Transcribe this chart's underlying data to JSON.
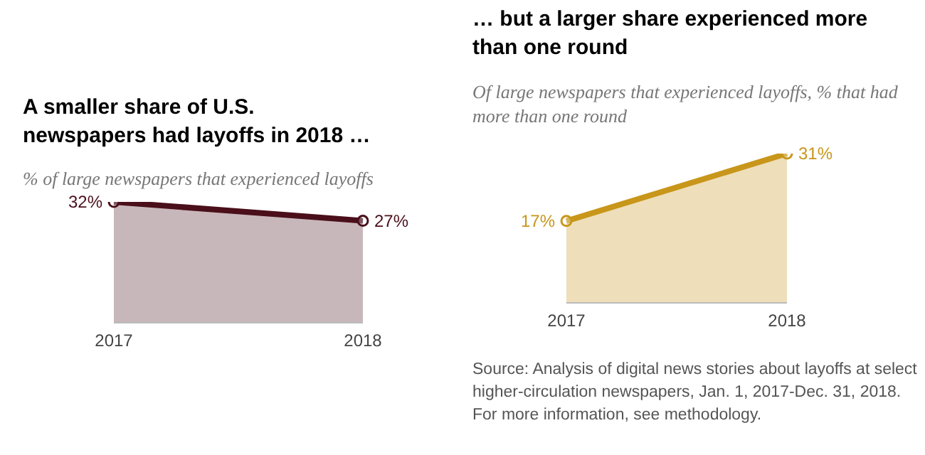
{
  "chart_data": [
    {
      "type": "area",
      "title": "A smaller share of U.S. newspapers had layoffs in 2018 …",
      "subtitle": "% of large newspapers that experienced layoffs",
      "categories": [
        "2017",
        "2018"
      ],
      "series": [
        {
          "color": "#4a0f1a",
          "values": [
            32,
            27
          ],
          "value_labels": [
            "32%",
            "27%"
          ]
        }
      ],
      "tick_labels": "x",
      "grid": false,
      "legend": false,
      "marker": "circle"
    },
    {
      "type": "area",
      "title": "… but a larger share experienced more than one round",
      "subtitle": "Of large newspapers that experienced layoffs, % that had more than one round",
      "categories": [
        "2017",
        "2018"
      ],
      "series": [
        {
          "color": "#c8961a",
          "values": [
            17,
            31
          ],
          "value_labels": [
            "17%",
            "31%"
          ]
        }
      ],
      "tick_labels": "x",
      "grid": false,
      "legend": false,
      "marker": "circle",
      "annotations": [
        "Source: Analysis of digital news stories about layoffs at select higher-circulation newspapers, Jan. 1, 2017-Dec. 31, 2018. For more information, see methodology."
      ]
    }
  ]
}
